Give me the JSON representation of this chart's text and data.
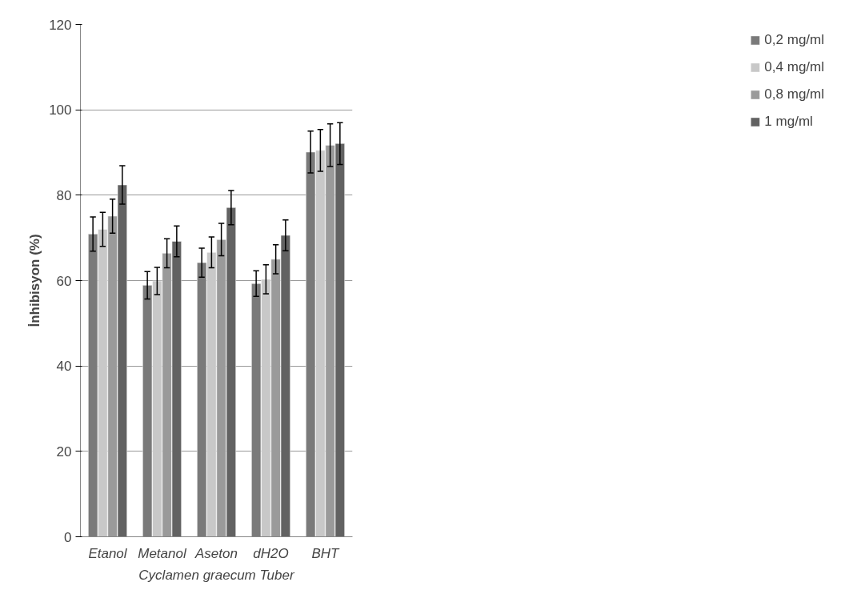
{
  "chart_data": {
    "type": "bar",
    "xlabel": "Cyclamen graecum Tuber",
    "ylabel": "İnhibisyon (%)",
    "categories": [
      "Etanol",
      "Metanol",
      "Aseton",
      "dH2O",
      "BHT"
    ],
    "series": [
      {
        "name": "0,2 mg/ml",
        "color": "#7a7a7a",
        "values": [
          70.9,
          58.9,
          64.2,
          59.3,
          90.1
        ],
        "errors": [
          4,
          3.2,
          3.4,
          3,
          4.9
        ]
      },
      {
        "name": "0,4 mg/ml",
        "color": "#c8c8c8",
        "values": [
          72,
          59.9,
          66.6,
          60.3,
          90.5
        ],
        "errors": [
          4,
          3.2,
          3.6,
          3.4,
          4.9
        ]
      },
      {
        "name": "0,8 mg/ml",
        "color": "#9a9a9a",
        "values": [
          75.1,
          66.4,
          69.6,
          65,
          91.7
        ],
        "errors": [
          4,
          3.4,
          3.8,
          3.4,
          5
        ]
      },
      {
        "name": "1 mg/ml",
        "color": "#626262",
        "values": [
          82.4,
          69.2,
          77.1,
          70.6,
          92.1
        ],
        "errors": [
          4.5,
          3.6,
          4,
          3.6,
          4.9
        ]
      }
    ],
    "ylim": [
      0,
      120
    ],
    "yticks": [
      0,
      20,
      40,
      60,
      80,
      100,
      120
    ],
    "grid": "y",
    "legend": "right"
  }
}
